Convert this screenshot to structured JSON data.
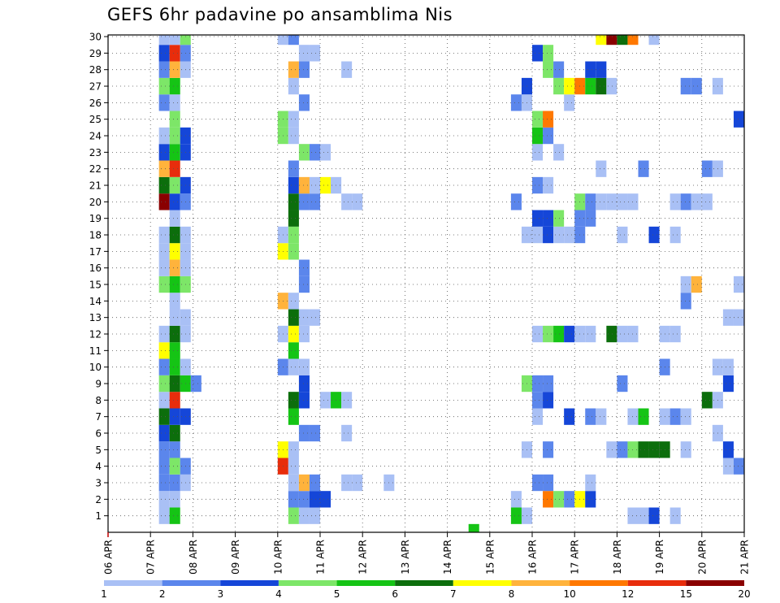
{
  "chart_data": {
    "type": "heatmap",
    "title": "GEFS 6hr padavine po ansamblima Nis",
    "xlabel": "",
    "ylabel": "",
    "x_start_day": 6,
    "x_end_day": 21,
    "x_ticks": [
      "06 APR",
      "07 APR",
      "08 APR",
      "09 APR",
      "10 APR",
      "11 APR",
      "12 APR",
      "13 APR",
      "14 APR",
      "15 APR",
      "16 APR",
      "17 APR",
      "18 APR",
      "19 APR",
      "20 APR",
      "21 APR"
    ],
    "y_ticks": [
      1,
      2,
      3,
      4,
      5,
      6,
      7,
      8,
      9,
      10,
      11,
      12,
      13,
      14,
      15,
      16,
      17,
      18,
      19,
      20,
      21,
      22,
      23,
      24,
      25,
      26,
      27,
      28,
      29,
      30
    ],
    "ylim": [
      0,
      30
    ],
    "grid": true,
    "colorbar": {
      "labels": [
        "1",
        "2",
        "3",
        "4",
        "5",
        "6",
        "7",
        "8",
        "10",
        "12",
        "15",
        "20"
      ],
      "colors": [
        "#a9c0f5",
        "#5b86ec",
        "#1546d8",
        "#7de668",
        "#15c415",
        "#0c6e0c",
        "#ffff00",
        "#ffb33c",
        "#ff7800",
        "#e82d0c",
        "#8a0000"
      ]
    },
    "cells": [
      [
        7.2,
        7.45,
        1,
        1
      ],
      [
        7.2,
        7.45,
        2,
        1
      ],
      [
        7.2,
        7.45,
        3,
        2
      ],
      [
        7.2,
        7.45,
        4,
        2
      ],
      [
        7.2,
        7.45,
        5,
        2
      ],
      [
        7.2,
        7.45,
        6,
        3
      ],
      [
        7.2,
        7.45,
        7,
        6
      ],
      [
        7.2,
        7.45,
        8,
        1
      ],
      [
        7.2,
        7.45,
        9,
        4
      ],
      [
        7.2,
        7.45,
        10,
        2
      ],
      [
        7.2,
        7.45,
        11,
        7
      ],
      [
        7.2,
        7.45,
        12,
        1
      ],
      [
        7.2,
        7.45,
        15,
        4
      ],
      [
        7.2,
        7.45,
        16,
        1
      ],
      [
        7.2,
        7.45,
        17,
        1
      ],
      [
        7.2,
        7.45,
        18,
        1
      ],
      [
        7.2,
        7.45,
        20,
        11
      ],
      [
        7.2,
        7.45,
        21,
        6
      ],
      [
        7.2,
        7.45,
        22,
        8
      ],
      [
        7.2,
        7.45,
        23,
        3
      ],
      [
        7.2,
        7.45,
        24,
        1
      ],
      [
        7.2,
        7.45,
        26,
        2
      ],
      [
        7.2,
        7.45,
        27,
        4
      ],
      [
        7.2,
        7.45,
        28,
        2
      ],
      [
        7.2,
        7.45,
        29,
        3
      ],
      [
        7.2,
        7.45,
        30,
        1
      ],
      [
        7.45,
        7.7,
        1,
        5
      ],
      [
        7.45,
        7.7,
        2,
        1
      ],
      [
        7.45,
        7.7,
        3,
        2
      ],
      [
        7.45,
        7.7,
        4,
        4
      ],
      [
        7.45,
        7.7,
        5,
        2
      ],
      [
        7.45,
        7.7,
        6,
        6
      ],
      [
        7.45,
        7.7,
        7,
        3
      ],
      [
        7.45,
        7.7,
        8,
        10
      ],
      [
        7.45,
        7.7,
        9,
        6
      ],
      [
        7.45,
        7.7,
        10,
        5
      ],
      [
        7.45,
        7.7,
        11,
        5
      ],
      [
        7.45,
        7.7,
        12,
        6
      ],
      [
        7.45,
        7.7,
        13,
        1
      ],
      [
        7.45,
        7.7,
        14,
        1
      ],
      [
        7.45,
        7.7,
        15,
        5
      ],
      [
        7.45,
        7.7,
        16,
        8
      ],
      [
        7.45,
        7.7,
        17,
        7
      ],
      [
        7.45,
        7.7,
        18,
        6
      ],
      [
        7.45,
        7.7,
        19,
        1
      ],
      [
        7.45,
        7.7,
        20,
        3
      ],
      [
        7.45,
        7.7,
        21,
        4
      ],
      [
        7.45,
        7.7,
        22,
        10
      ],
      [
        7.45,
        7.7,
        23,
        5
      ],
      [
        7.45,
        7.7,
        24,
        4
      ],
      [
        7.45,
        7.7,
        25,
        4
      ],
      [
        7.45,
        7.7,
        26,
        1
      ],
      [
        7.45,
        7.7,
        27,
        5
      ],
      [
        7.45,
        7.7,
        28,
        8
      ],
      [
        7.45,
        7.7,
        29,
        10
      ],
      [
        7.45,
        7.7,
        30,
        1
      ],
      [
        7.7,
        7.95,
        3,
        1
      ],
      [
        7.7,
        7.95,
        4,
        2
      ],
      [
        7.7,
        7.95,
        7,
        3
      ],
      [
        7.7,
        7.95,
        9,
        5
      ],
      [
        7.7,
        7.95,
        10,
        1
      ],
      [
        7.7,
        7.95,
        12,
        1
      ],
      [
        7.7,
        7.95,
        13,
        1
      ],
      [
        7.7,
        7.95,
        15,
        4
      ],
      [
        7.7,
        7.95,
        16,
        1
      ],
      [
        7.7,
        7.95,
        17,
        1
      ],
      [
        7.7,
        7.95,
        18,
        1
      ],
      [
        7.7,
        7.95,
        20,
        2
      ],
      [
        7.7,
        7.95,
        21,
        3
      ],
      [
        7.7,
        7.95,
        23,
        3
      ],
      [
        7.7,
        7.95,
        24,
        3
      ],
      [
        7.7,
        7.95,
        28,
        1
      ],
      [
        7.7,
        7.95,
        29,
        2
      ],
      [
        7.7,
        7.95,
        30,
        4
      ],
      [
        7.95,
        8.2,
        9,
        2
      ],
      [
        10.0,
        10.25,
        4,
        10
      ],
      [
        10.0,
        10.25,
        5,
        7
      ],
      [
        10.0,
        10.25,
        10,
        2
      ],
      [
        10.0,
        10.25,
        12,
        1
      ],
      [
        10.0,
        10.25,
        14,
        8
      ],
      [
        10.0,
        10.25,
        17,
        7
      ],
      [
        10.0,
        10.25,
        18,
        1
      ],
      [
        10.0,
        10.25,
        24,
        4
      ],
      [
        10.0,
        10.25,
        25,
        4
      ],
      [
        10.0,
        10.25,
        30,
        1
      ],
      [
        10.25,
        10.5,
        1,
        4
      ],
      [
        10.25,
        10.5,
        2,
        2
      ],
      [
        10.25,
        10.5,
        3,
        1
      ],
      [
        10.25,
        10.5,
        4,
        1
      ],
      [
        10.25,
        10.5,
        5,
        1
      ],
      [
        10.25,
        10.5,
        7,
        5
      ],
      [
        10.25,
        10.5,
        8,
        6
      ],
      [
        10.25,
        10.5,
        10,
        1
      ],
      [
        10.25,
        10.5,
        11,
        5
      ],
      [
        10.25,
        10.5,
        12,
        7
      ],
      [
        10.25,
        10.5,
        13,
        6
      ],
      [
        10.25,
        10.5,
        14,
        1
      ],
      [
        10.25,
        10.5,
        17,
        4
      ],
      [
        10.25,
        10.5,
        18,
        4
      ],
      [
        10.25,
        10.5,
        19,
        6
      ],
      [
        10.25,
        10.5,
        20,
        6
      ],
      [
        10.25,
        10.5,
        21,
        3
      ],
      [
        10.25,
        10.5,
        22,
        2
      ],
      [
        10.25,
        10.5,
        24,
        1
      ],
      [
        10.25,
        10.5,
        25,
        1
      ],
      [
        10.25,
        10.5,
        27,
        1
      ],
      [
        10.25,
        10.5,
        28,
        8
      ],
      [
        10.25,
        10.5,
        30,
        2
      ],
      [
        10.5,
        10.75,
        1,
        1
      ],
      [
        10.5,
        10.75,
        2,
        2
      ],
      [
        10.5,
        10.75,
        3,
        8
      ],
      [
        10.5,
        10.75,
        6,
        2
      ],
      [
        10.5,
        10.75,
        8,
        3
      ],
      [
        10.5,
        10.75,
        9,
        3
      ],
      [
        10.5,
        10.75,
        10,
        1
      ],
      [
        10.5,
        10.75,
        12,
        1
      ],
      [
        10.5,
        10.75,
        13,
        1
      ],
      [
        10.5,
        10.75,
        15,
        2
      ],
      [
        10.5,
        10.75,
        16,
        2
      ],
      [
        10.5,
        10.75,
        20,
        2
      ],
      [
        10.5,
        10.75,
        21,
        8
      ],
      [
        10.5,
        10.75,
        23,
        4
      ],
      [
        10.5,
        10.75,
        26,
        2
      ],
      [
        10.5,
        10.75,
        28,
        2
      ],
      [
        10.5,
        10.75,
        29,
        1
      ],
      [
        10.75,
        11.0,
        1,
        1
      ],
      [
        10.75,
        11.0,
        2,
        3
      ],
      [
        10.75,
        11.0,
        3,
        2
      ],
      [
        10.75,
        11.0,
        6,
        2
      ],
      [
        10.75,
        11.0,
        13,
        1
      ],
      [
        10.75,
        11.0,
        20,
        2
      ],
      [
        10.75,
        11.0,
        21,
        1
      ],
      [
        10.75,
        11.0,
        23,
        2
      ],
      [
        10.75,
        11.0,
        29,
        1
      ],
      [
        11.0,
        11.25,
        2,
        3
      ],
      [
        11.0,
        11.25,
        8,
        1
      ],
      [
        11.0,
        11.25,
        21,
        7
      ],
      [
        11.0,
        11.25,
        23,
        1
      ],
      [
        11.25,
        11.5,
        8,
        5
      ],
      [
        11.25,
        11.5,
        21,
        1
      ],
      [
        11.5,
        11.75,
        3,
        1
      ],
      [
        11.5,
        11.75,
        6,
        1
      ],
      [
        11.5,
        11.75,
        8,
        1
      ],
      [
        11.5,
        11.75,
        20,
        1
      ],
      [
        11.5,
        11.75,
        28,
        1
      ],
      [
        11.75,
        12.0,
        3,
        1
      ],
      [
        11.75,
        12.0,
        20,
        1
      ],
      [
        12.5,
        12.75,
        3,
        1
      ],
      [
        14.5,
        14.75,
        0,
        5
      ],
      [
        15.5,
        15.75,
        1,
        5
      ],
      [
        15.5,
        15.75,
        2,
        1
      ],
      [
        15.5,
        15.75,
        20,
        2
      ],
      [
        15.5,
        15.75,
        26,
        2
      ],
      [
        15.75,
        16.0,
        1,
        1
      ],
      [
        15.75,
        16.0,
        5,
        1
      ],
      [
        15.75,
        16.0,
        9,
        4
      ],
      [
        15.75,
        16.0,
        18,
        1
      ],
      [
        15.75,
        16.0,
        26,
        1
      ],
      [
        15.75,
        16.0,
        27,
        3
      ],
      [
        16.0,
        16.25,
        3,
        2
      ],
      [
        16.0,
        16.25,
        7,
        1
      ],
      [
        16.0,
        16.25,
        8,
        2
      ],
      [
        16.0,
        16.25,
        9,
        2
      ],
      [
        16.0,
        16.25,
        12,
        1
      ],
      [
        16.0,
        16.25,
        18,
        1
      ],
      [
        16.0,
        16.25,
        19,
        3
      ],
      [
        16.0,
        16.25,
        21,
        2
      ],
      [
        16.0,
        16.25,
        23,
        1
      ],
      [
        16.0,
        16.25,
        24,
        5
      ],
      [
        16.0,
        16.25,
        25,
        4
      ],
      [
        16.0,
        16.25,
        29,
        3
      ],
      [
        16.25,
        16.5,
        2,
        9
      ],
      [
        16.25,
        16.5,
        3,
        2
      ],
      [
        16.25,
        16.5,
        5,
        2
      ],
      [
        16.25,
        16.5,
        8,
        3
      ],
      [
        16.25,
        16.5,
        9,
        2
      ],
      [
        16.25,
        16.5,
        12,
        4
      ],
      [
        16.25,
        16.5,
        18,
        3
      ],
      [
        16.25,
        16.5,
        19,
        3
      ],
      [
        16.25,
        16.5,
        21,
        1
      ],
      [
        16.25,
        16.5,
        24,
        2
      ],
      [
        16.25,
        16.5,
        25,
        9
      ],
      [
        16.25,
        16.5,
        28,
        4
      ],
      [
        16.25,
        16.5,
        29,
        4
      ],
      [
        16.5,
        16.75,
        2,
        4
      ],
      [
        16.5,
        16.75,
        12,
        5
      ],
      [
        16.5,
        16.75,
        18,
        1
      ],
      [
        16.5,
        16.75,
        19,
        4
      ],
      [
        16.5,
        16.75,
        23,
        1
      ],
      [
        16.5,
        16.75,
        27,
        4
      ],
      [
        16.5,
        16.75,
        28,
        2
      ],
      [
        16.75,
        17.0,
        2,
        2
      ],
      [
        16.75,
        17.0,
        7,
        3
      ],
      [
        16.75,
        17.0,
        12,
        3
      ],
      [
        16.75,
        17.0,
        18,
        1
      ],
      [
        16.75,
        17.0,
        26,
        1
      ],
      [
        16.75,
        17.0,
        27,
        7
      ],
      [
        17.0,
        17.25,
        2,
        7
      ],
      [
        17.0,
        17.25,
        12,
        1
      ],
      [
        17.0,
        17.25,
        18,
        2
      ],
      [
        17.0,
        17.25,
        19,
        2
      ],
      [
        17.0,
        17.25,
        20,
        4
      ],
      [
        17.0,
        17.25,
        27,
        9
      ],
      [
        17.25,
        17.5,
        2,
        3
      ],
      [
        17.25,
        17.5,
        3,
        1
      ],
      [
        17.25,
        17.5,
        7,
        2
      ],
      [
        17.25,
        17.5,
        12,
        1
      ],
      [
        17.25,
        17.5,
        19,
        2
      ],
      [
        17.25,
        17.5,
        20,
        2
      ],
      [
        17.25,
        17.5,
        27,
        5
      ],
      [
        17.25,
        17.5,
        28,
        3
      ],
      [
        17.5,
        17.75,
        7,
        1
      ],
      [
        17.5,
        17.75,
        20,
        1
      ],
      [
        17.5,
        17.75,
        22,
        1
      ],
      [
        17.5,
        17.75,
        27,
        6
      ],
      [
        17.5,
        17.75,
        28,
        3
      ],
      [
        17.5,
        17.75,
        30,
        7
      ],
      [
        17.75,
        18.0,
        5,
        1
      ],
      [
        17.75,
        18.0,
        12,
        6
      ],
      [
        17.75,
        18.0,
        20,
        1
      ],
      [
        17.75,
        18.0,
        27,
        1
      ],
      [
        17.75,
        18.0,
        30,
        11
      ],
      [
        18.0,
        18.25,
        5,
        2
      ],
      [
        18.0,
        18.25,
        9,
        2
      ],
      [
        18.0,
        18.25,
        12,
        1
      ],
      [
        18.0,
        18.25,
        18,
        1
      ],
      [
        18.0,
        18.25,
        20,
        1
      ],
      [
        18.0,
        18.25,
        30,
        6
      ],
      [
        18.25,
        18.5,
        1,
        1
      ],
      [
        18.25,
        18.5,
        5,
        4
      ],
      [
        18.25,
        18.5,
        7,
        1
      ],
      [
        18.25,
        18.5,
        12,
        1
      ],
      [
        18.25,
        18.5,
        20,
        1
      ],
      [
        18.25,
        18.5,
        30,
        9
      ],
      [
        18.5,
        18.75,
        1,
        1
      ],
      [
        18.5,
        18.75,
        5,
        6
      ],
      [
        18.5,
        18.75,
        7,
        5
      ],
      [
        18.5,
        18.75,
        22,
        2
      ],
      [
        18.75,
        19.0,
        1,
        3
      ],
      [
        18.75,
        19.0,
        5,
        6
      ],
      [
        18.75,
        19.0,
        18,
        3
      ],
      [
        18.75,
        19.0,
        30,
        1
      ],
      [
        19.0,
        19.25,
        5,
        6
      ],
      [
        19.0,
        19.25,
        7,
        1
      ],
      [
        19.0,
        19.25,
        10,
        2
      ],
      [
        19.0,
        19.25,
        12,
        1
      ],
      [
        19.25,
        19.5,
        1,
        1
      ],
      [
        19.25,
        19.5,
        7,
        2
      ],
      [
        19.25,
        19.5,
        12,
        1
      ],
      [
        19.25,
        19.5,
        18,
        1
      ],
      [
        19.25,
        19.5,
        20,
        1
      ],
      [
        19.5,
        19.75,
        5,
        1
      ],
      [
        19.5,
        19.75,
        7,
        1
      ],
      [
        19.5,
        19.75,
        14,
        2
      ],
      [
        19.5,
        19.75,
        15,
        1
      ],
      [
        19.5,
        19.75,
        20,
        2
      ],
      [
        19.5,
        19.75,
        27,
        2
      ],
      [
        19.75,
        20.0,
        15,
        8
      ],
      [
        19.75,
        20.0,
        20,
        1
      ],
      [
        19.75,
        20.0,
        27,
        2
      ],
      [
        20.0,
        20.25,
        8,
        6
      ],
      [
        20.0,
        20.25,
        20,
        1
      ],
      [
        20.0,
        20.25,
        22,
        2
      ],
      [
        20.25,
        20.5,
        6,
        1
      ],
      [
        20.25,
        20.5,
        8,
        1
      ],
      [
        20.25,
        20.5,
        10,
        1
      ],
      [
        20.25,
        20.5,
        22,
        1
      ],
      [
        20.25,
        20.5,
        27,
        1
      ],
      [
        20.5,
        20.75,
        4,
        1
      ],
      [
        20.5,
        20.75,
        5,
        3
      ],
      [
        20.5,
        20.75,
        9,
        3
      ],
      [
        20.5,
        20.75,
        10,
        1
      ],
      [
        20.5,
        20.75,
        13,
        1
      ],
      [
        20.75,
        21.0,
        4,
        2
      ],
      [
        20.75,
        21.0,
        13,
        1
      ],
      [
        20.75,
        21.0,
        15,
        1
      ],
      [
        20.75,
        21.0,
        25,
        3
      ]
    ]
  }
}
